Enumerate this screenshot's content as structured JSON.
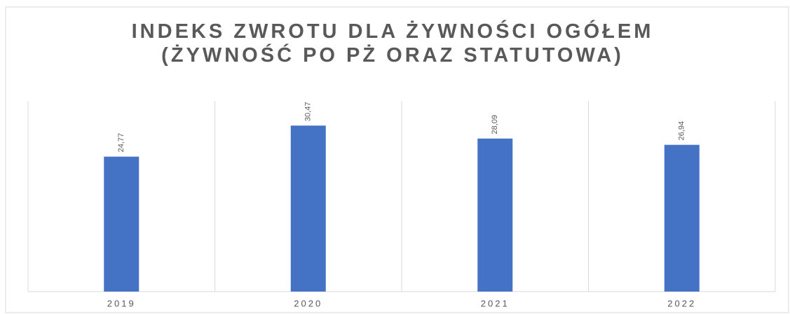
{
  "chart_data": {
    "type": "bar",
    "title": "INDEKS ZWROTU DLA ŻYWNOŚCI OGÓŁEM (ŻYWNOŚĆ PO PŻ ORAZ STATUTOWA)",
    "categories": [
      "2019",
      "2020",
      "2021",
      "2022"
    ],
    "values": [
      24.77,
      30.47,
      28.09,
      26.94
    ],
    "value_labels": [
      "24,77",
      "30,47",
      "28,09",
      "26,94"
    ],
    "color": "#4472c4",
    "ylim": [
      0,
      35
    ]
  }
}
